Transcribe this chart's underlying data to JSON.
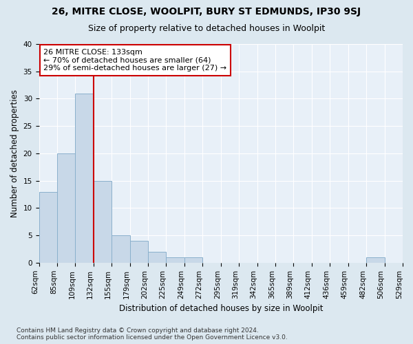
{
  "title1": "26, MITRE CLOSE, WOOLPIT, BURY ST EDMUNDS, IP30 9SJ",
  "title2": "Size of property relative to detached houses in Woolpit",
  "xlabel": "Distribution of detached houses by size in Woolpit",
  "ylabel": "Number of detached properties",
  "bar_values": [
    13,
    20,
    31,
    15,
    5,
    4,
    2,
    1,
    1,
    0,
    0,
    0,
    0,
    0,
    0,
    0,
    0,
    0,
    1,
    0
  ],
  "bar_labels": [
    "62sqm",
    "85sqm",
    "109sqm",
    "132sqm",
    "155sqm",
    "179sqm",
    "202sqm",
    "225sqm",
    "249sqm",
    "272sqm",
    "295sqm",
    "319sqm",
    "342sqm",
    "365sqm",
    "389sqm",
    "412sqm",
    "436sqm",
    "459sqm",
    "482sqm",
    "506sqm",
    "529sqm"
  ],
  "bar_color": "#c8d8e8",
  "bar_edge_color": "#8ab0cc",
  "vline_x": 2.5,
  "vline_color": "#cc0000",
  "annotation_text": "26 MITRE CLOSE: 133sqm\n← 70% of detached houses are smaller (64)\n29% of semi-detached houses are larger (27) →",
  "annotation_box_color": "#ffffff",
  "annotation_box_edge": "#cc0000",
  "ylim": [
    0,
    40
  ],
  "yticks": [
    0,
    5,
    10,
    15,
    20,
    25,
    30,
    35,
    40
  ],
  "footnote": "Contains HM Land Registry data © Crown copyright and database right 2024.\nContains public sector information licensed under the Open Government Licence v3.0.",
  "bg_color": "#dce8f0",
  "plot_bg_color": "#e8f0f8",
  "title1_fontsize": 10,
  "title2_fontsize": 9,
  "xlabel_fontsize": 8.5,
  "ylabel_fontsize": 8.5,
  "tick_fontsize": 7.5,
  "footnote_fontsize": 6.5,
  "annotation_fontsize": 8
}
